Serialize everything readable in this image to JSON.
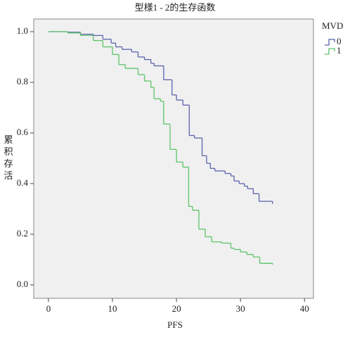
{
  "chart_data": {
    "type": "step-line",
    "title": "型様1 - 2的生存函数",
    "x_label": "PFS",
    "y_label": "累积存活",
    "legend_title": "MVD",
    "xlim": [
      -2.3,
      41.4
    ],
    "ylim": [
      -0.053,
      1.05
    ],
    "xticks": [
      0,
      10,
      20,
      30,
      40
    ],
    "yticks": [
      {
        "value": 0,
        "label": "0.0"
      },
      0.2,
      0.4,
      0.6,
      0.8,
      {
        "value": 1,
        "label": "1.0"
      }
    ],
    "series": [
      {
        "name": "0",
        "color": "#5a63ad",
        "x": [
          0,
          3,
          5,
          7,
          8.5,
          9.8,
          10.5,
          11.5,
          13,
          14,
          15,
          16,
          16.5,
          18,
          19.3,
          20,
          21,
          22,
          22.8,
          24,
          24.7,
          25.3,
          26,
          27.6,
          28.5,
          29,
          29.8,
          30.6,
          31.1,
          32,
          32.9,
          35
        ],
        "values": [
          1.0,
          0.998,
          0.99,
          0.985,
          0.97,
          0.955,
          0.94,
          0.93,
          0.92,
          0.9,
          0.89,
          0.875,
          0.865,
          0.81,
          0.75,
          0.73,
          0.71,
          0.59,
          0.58,
          0.51,
          0.48,
          0.46,
          0.45,
          0.44,
          0.43,
          0.41,
          0.4,
          0.39,
          0.38,
          0.36,
          0.33,
          0.32
        ]
      },
      {
        "name": "1",
        "color": "#5cc46b",
        "x": [
          0,
          3,
          5,
          7,
          8.5,
          10,
          11,
          12,
          14,
          15,
          16,
          16.5,
          17.5,
          18,
          19,
          20,
          21,
          21.9,
          22.5,
          23.5,
          24.5,
          25.5,
          27,
          28.5,
          29,
          30,
          31,
          32,
          33,
          35
        ],
        "values": [
          1.0,
          0.995,
          0.985,
          0.965,
          0.94,
          0.91,
          0.87,
          0.855,
          0.83,
          0.805,
          0.78,
          0.735,
          0.725,
          0.635,
          0.535,
          0.485,
          0.465,
          0.31,
          0.295,
          0.22,
          0.19,
          0.17,
          0.165,
          0.145,
          0.14,
          0.13,
          0.12,
          0.11,
          0.085,
          0.08
        ]
      }
    ]
  }
}
